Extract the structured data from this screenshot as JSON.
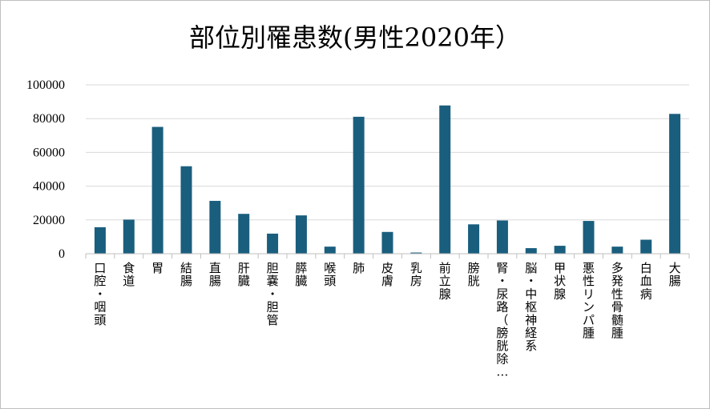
{
  "chart_data": {
    "type": "bar",
    "title": "部位別罹患数(男性2020年）",
    "categories": [
      "口腔・咽頭",
      "食道",
      "胃",
      "結腸",
      "直腸",
      "肝臓",
      "胆嚢・胆管",
      "膵臓",
      "喉頭",
      "肺",
      "皮膚",
      "乳房",
      "前立腺",
      "膀胱",
      "腎・尿路（膀胱除…",
      "脳・中枢神経系",
      "甲状腺",
      "悪性リンパ腫",
      "多発性骨髄腫",
      "白血病",
      "大腸"
    ],
    "values": [
      15700,
      20200,
      75100,
      51800,
      31300,
      23600,
      11900,
      22700,
      4200,
      81100,
      12900,
      700,
      87800,
      17400,
      19700,
      3300,
      4700,
      19400,
      4200,
      8300,
      82800
    ],
    "ylim": [
      0,
      100000
    ],
    "yticks": [
      0,
      20000,
      40000,
      60000,
      80000,
      100000
    ],
    "grid": true,
    "legend": "none",
    "bar_color": "#1a5e7e",
    "grid_color": "#d9d9d9"
  }
}
